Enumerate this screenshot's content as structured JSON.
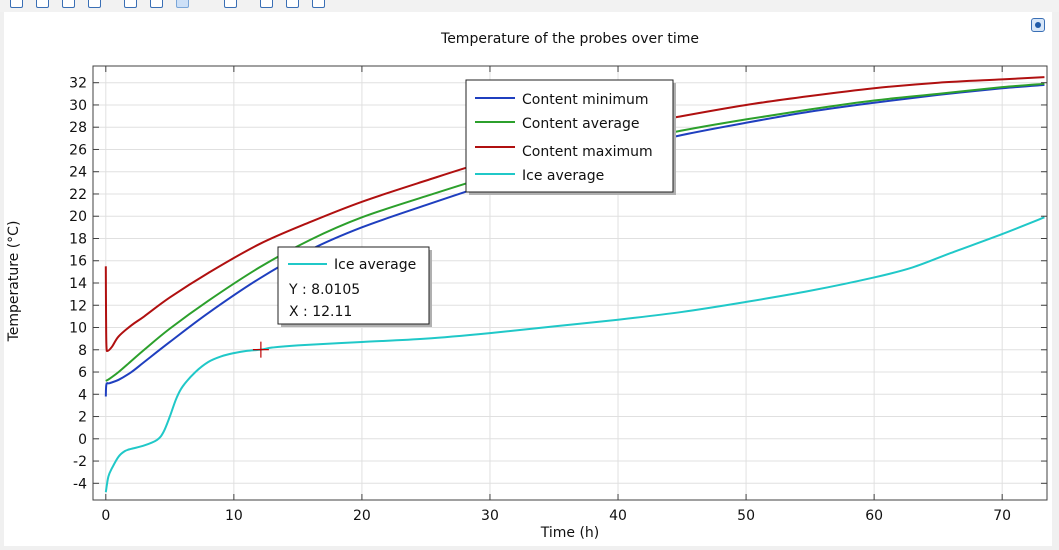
{
  "toolbar": {
    "icons": [
      "zoom-box-icon",
      "zoom-in-icon",
      "zoom-out-icon",
      "zoom-extents-icon",
      "grid-icon",
      "axis-icon",
      "pointer-icon",
      "color-icon",
      "info-icon",
      "screenshot-icon",
      "home-icon"
    ]
  },
  "colors": {
    "axes": "#404040",
    "grid": "#e0e0e0",
    "marker": "#c00000"
  },
  "chart_data": {
    "type": "line",
    "title": "Temperature of the probes over time",
    "xlabel": "Time (h)",
    "ylabel": "Temperature (°C)",
    "xlim": [
      -1,
      73.5
    ],
    "ylim": [
      -5.5,
      33.5
    ],
    "xticks": [
      0,
      10,
      20,
      30,
      40,
      50,
      60,
      70
    ],
    "yticks": [
      -4,
      -2,
      0,
      2,
      4,
      6,
      8,
      10,
      12,
      14,
      16,
      18,
      20,
      22,
      24,
      26,
      28,
      30,
      32
    ],
    "grid": true,
    "legend_position": "top-center",
    "series": [
      {
        "name": "Content minimum",
        "color": "#1f3fbf",
        "x": [
          0,
          0.05,
          0.3,
          1,
          2,
          3,
          5,
          8,
          12,
          16,
          20,
          25,
          30,
          35,
          40,
          45,
          50,
          55,
          60,
          65,
          70,
          73.3
        ],
        "y": [
          3.8,
          4.9,
          5.0,
          5.3,
          6.0,
          6.9,
          8.7,
          11.3,
          14.4,
          17.0,
          19.0,
          21.0,
          22.9,
          24.6,
          26.0,
          27.3,
          28.4,
          29.4,
          30.2,
          30.9,
          31.5,
          31.8
        ]
      },
      {
        "name": "Content average",
        "color": "#2ca02c",
        "x": [
          0,
          0.3,
          1,
          2,
          3,
          5,
          8,
          12,
          16,
          20,
          25,
          30,
          35,
          40,
          45,
          50,
          55,
          60,
          65,
          70,
          73.3
        ],
        "y": [
          5.2,
          5.4,
          6.0,
          7.0,
          8.0,
          9.9,
          12.4,
          15.4,
          17.9,
          19.9,
          21.8,
          23.6,
          25.2,
          26.5,
          27.7,
          28.7,
          29.6,
          30.4,
          31.0,
          31.6,
          31.9
        ]
      },
      {
        "name": "Content maximum",
        "color": "#b01010",
        "x": [
          0,
          0.02,
          0.05,
          0.15,
          0.5,
          1,
          2,
          3,
          5,
          8,
          12,
          16,
          20,
          25,
          30,
          35,
          40,
          45,
          50,
          55,
          60,
          65,
          70,
          73.3
        ],
        "y": [
          15.5,
          11.0,
          8.3,
          7.9,
          8.3,
          9.2,
          10.2,
          11.0,
          12.7,
          14.9,
          17.5,
          19.5,
          21.3,
          23.2,
          25.0,
          26.5,
          27.9,
          29.0,
          30.0,
          30.8,
          31.5,
          32.0,
          32.3,
          32.5
        ]
      },
      {
        "name": "Ice average",
        "color": "#20c8c8",
        "x": [
          0,
          0.2,
          0.5,
          1,
          1.5,
          2,
          3,
          4,
          4.5,
          5,
          5.5,
          6,
          7,
          8,
          9,
          10,
          11,
          12.11,
          13,
          15,
          20,
          25,
          30,
          35,
          40,
          45,
          50,
          55,
          60,
          63,
          66,
          70,
          73.3
        ],
        "y": [
          -4.8,
          -3.4,
          -2.6,
          -1.6,
          -1.1,
          -0.9,
          -0.6,
          -0.1,
          0.6,
          2.0,
          3.6,
          4.7,
          6.0,
          6.9,
          7.4,
          7.7,
          7.9,
          8.0105,
          8.2,
          8.4,
          8.7,
          9.0,
          9.5,
          10.1,
          10.7,
          11.4,
          12.3,
          13.3,
          14.5,
          15.4,
          16.7,
          18.4,
          19.9
        ]
      }
    ],
    "tooltip": {
      "series": "Ice average",
      "y_label": "Y : 8.0105",
      "x_label": "X : 12.11",
      "x": 12.11,
      "y": 8.0105
    }
  }
}
